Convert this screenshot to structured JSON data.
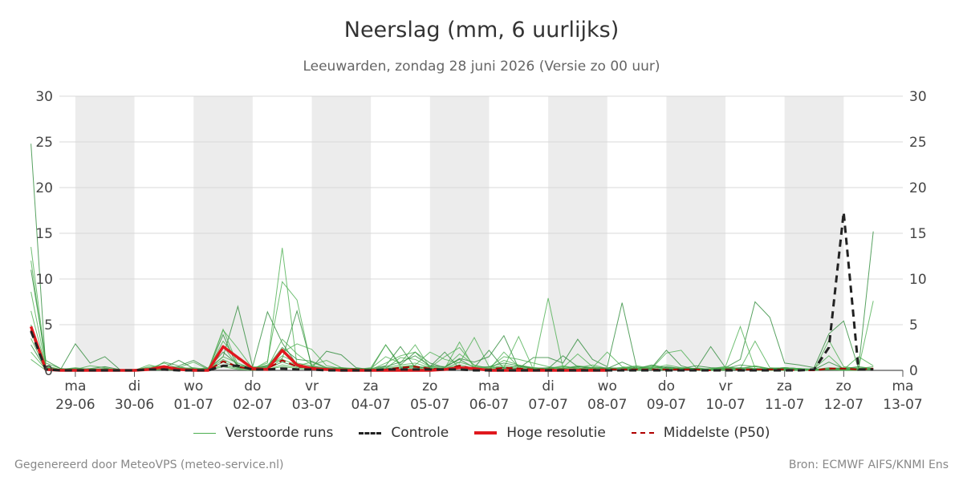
{
  "chart_data": {
    "type": "line",
    "title": "Neerslag (mm, 6 uurlijks)",
    "subtitle": "Leeuwarden, zondag 28 juni 2026 (Versie zo 00 uur)",
    "x_unit_hours": 6,
    "ylim": [
      0,
      30
    ],
    "yticks": [
      0,
      5,
      10,
      15,
      20,
      25,
      30
    ],
    "y_axis_both_sides": true,
    "grid": true,
    "x_tick_labels": [
      {
        "day": "ma",
        "date": "29-06"
      },
      {
        "day": "di",
        "date": "30-06"
      },
      {
        "day": "wo",
        "date": "01-07"
      },
      {
        "day": "do",
        "date": "02-07"
      },
      {
        "day": "vr",
        "date": "03-07"
      },
      {
        "day": "za",
        "date": "04-07"
      },
      {
        "day": "zo",
        "date": "05-07"
      },
      {
        "day": "ma",
        "date": "06-07"
      },
      {
        "day": "di",
        "date": "07-07"
      },
      {
        "day": "wo",
        "date": "08-07"
      },
      {
        "day": "do",
        "date": "09-07"
      },
      {
        "day": "vr",
        "date": "10-07"
      },
      {
        "day": "za",
        "date": "11-07"
      },
      {
        "day": "zo",
        "date": "12-07"
      },
      {
        "day": "ma",
        "date": "13-07"
      }
    ],
    "shaded_days": [
      "29-06",
      "01-07",
      "03-07",
      "05-07",
      "07-07",
      "09-07",
      "11-07"
    ],
    "legend_position": "bottom",
    "series": [
      {
        "name": "Verstoorde runs",
        "role": "ensemble",
        "color": "#2ca02c",
        "style": "thin",
        "members": [
          [
            24.8,
            0.3,
            0.1,
            2.9,
            0.8,
            1.5,
            0.1,
            0,
            0,
            0.9,
            0.5,
            1.1,
            0.2,
            1.5,
            7.0,
            0.4,
            6.4,
            3.0,
            0.6,
            0.3,
            2.1,
            1.7,
            0.3,
            0.1,
            2.8,
            0.6,
            2.0,
            0.8,
            0.3,
            1.3,
            0.9,
            1.5,
            3.8,
            0.2,
            1.4,
            1.4,
            0.8,
            3.4,
            1.2,
            0.4,
            7.4,
            0.2,
            0.3,
            2.2,
            0.5,
            0.1,
            2.6,
            0.3,
            1.2,
            7.5,
            5.8,
            0.8,
            0.6,
            0.3,
            4.0,
            5.4,
            0.2,
            15.2
          ],
          [
            13.5,
            0.8,
            0.2,
            0.1,
            0.5,
            0.3,
            0,
            0,
            0.6,
            0.2,
            0.3,
            0.9,
            0.1,
            4.5,
            0.6,
            0.2,
            0.8,
            13.4,
            0.5,
            0.9,
            0.2,
            0.3,
            0.1,
            0.2,
            1.5,
            0.8,
            2.8,
            0.3,
            0.2,
            3.1,
            0.2,
            0.1,
            2.0,
            0.4,
            0.2,
            7.9,
            0.3,
            1.8,
            0.4,
            0.2,
            0.3,
            0.5,
            0.2,
            1.9,
            2.2,
            0.3,
            0.1,
            0.4,
            4.8,
            0.2,
            0.1,
            0.3,
            0.2,
            0,
            3.3,
            0.4,
            0.2,
            7.6
          ],
          [
            12.0,
            0.5,
            0.1,
            0.3,
            0.1,
            0.2,
            0,
            0.1,
            0.2,
            0.8,
            0.2,
            0.1,
            0.3,
            2.7,
            0.4,
            0.1,
            1.0,
            9.7,
            7.7,
            0.2,
            0.3,
            0.1,
            0.1,
            0.3,
            2.8,
            0.4,
            0.6,
            2.0,
            1.2,
            0.8,
            3.6,
            0.4,
            0.3,
            3.7,
            0.1,
            0.2,
            0.5,
            0.2,
            0.3,
            2.0,
            0.4,
            0.2,
            0.5,
            0.3,
            0.2,
            0.1,
            0.2,
            0.4,
            0.2,
            3.2,
            0.3,
            0.2,
            0.1,
            0.2,
            1.6,
            0.1,
            1.5,
            0.5
          ],
          [
            11.0,
            1.1,
            0.2,
            0.1,
            0.2,
            0.4,
            0.1,
            0,
            0.2,
            0.3,
            1.1,
            0.2,
            0.1,
            3.9,
            0.3,
            0.2,
            0.5,
            1.3,
            6.5,
            0.5,
            0.2,
            0.3,
            0.1,
            0.2,
            0.5,
            2.6,
            0.3,
            0.4,
            2.0,
            0.2,
            0.3,
            2.2,
            0.2,
            0.5,
            0.3,
            0.2,
            1.6,
            0.4,
            0.3,
            0.2,
            0.9,
            0.2,
            0.6,
            0.3,
            0.2,
            0.5,
            0.3,
            0.2,
            0.6,
            0.4,
            0.2,
            0.3,
            0.2,
            0.1,
            0.9,
            0.2,
            0.4,
            0.2
          ],
          [
            8.6,
            0.4,
            0.1,
            0.2,
            0.1,
            0.1,
            0,
            0.1,
            0.3,
            0.2,
            0.2,
            0.3,
            0.1,
            4.4,
            2.4,
            0.2,
            0.6,
            2.0,
            2.9,
            2.3,
            0.5,
            0.2,
            0.2,
            0.1,
            0.8,
            1.6,
            2.0,
            0.3,
            1.5,
            2.5,
            0.5,
            0.3,
            1.5,
            1.2,
            0.8,
            0.4,
            0.2,
            0.5,
            0.3,
            0.2,
            0.3,
            0.2,
            0.4,
            0.2,
            0.3,
            0.2,
            0.1,
            0.3,
            0.2,
            0.5,
            0.2,
            0.3,
            0.2,
            0.1,
            0.2,
            0.3,
            0.2,
            0.4
          ],
          [
            6.5,
            0.3,
            0.1,
            0.1,
            0.2,
            0.1,
            0,
            0,
            0.4,
            0.5,
            0.2,
            0.2,
            0.1,
            3.2,
            1.2,
            0.4,
            0.3,
            3.4,
            1.8,
            0.6,
            1.1,
            0.3,
            0.2,
            0.1,
            0.2,
            1.4,
            1.2,
            0.4,
            0.3,
            1.8,
            0.6,
            0.2,
            1.1,
            0.6,
            0.3,
            0.2,
            0.4,
            0.3,
            0.6,
            0.2,
            0.3,
            0.4,
            0.2,
            0.6,
            0.3,
            0.2,
            0.1,
            0.3,
            0.2,
            0.4,
            0.2,
            0.3,
            0.2,
            0.1,
            0.3,
            0.2,
            0.3,
            0.2
          ],
          [
            5.0,
            0.2,
            0.1,
            0.2,
            0.1,
            0.2,
            0,
            0,
            0.2,
            0.3,
            0.4,
            0.1,
            0.2,
            2.0,
            0.6,
            0.3,
            0.4,
            2.5,
            1.2,
            1.0,
            0.3,
            0.2,
            0.2,
            0.1,
            0.4,
            0.9,
            1.6,
            0.5,
            0.4,
            1.2,
            0.3,
            0.4,
            0.8,
            0.5,
            0.2,
            0.3,
            0.2,
            0.4,
            0.2,
            0.3,
            0.2,
            0.3,
            0.2,
            0.4,
            0.2,
            0.2,
            0.1,
            0.2,
            0.3,
            0.2,
            0.2,
            0.2,
            0.1,
            0.1,
            0.2,
            0.2,
            0.1,
            0.2
          ],
          [
            4.2,
            0.2,
            0.1,
            0.1,
            0.1,
            0.1,
            0,
            0,
            0.1,
            0.2,
            0.3,
            0.2,
            0.1,
            1.5,
            0.8,
            0.2,
            0.3,
            1.6,
            0.8,
            0.5,
            0.2,
            0.2,
            0.1,
            0.1,
            0.3,
            0.6,
            0.8,
            0.3,
            0.2,
            0.9,
            0.4,
            0.2,
            0.6,
            0.3,
            0.2,
            0.2,
            0.3,
            0.2,
            0.2,
            0.2,
            0.2,
            0.2,
            0.3,
            0.2,
            0.2,
            0.1,
            0.2,
            0.2,
            0.2,
            0.1,
            0.2,
            0.1,
            0.1,
            0.1,
            0.2,
            0.1,
            0.2,
            0.1
          ],
          [
            3.5,
            0.1,
            0.1,
            0.1,
            0.1,
            0.1,
            0,
            0,
            0.2,
            0.1,
            0.2,
            0.1,
            0.1,
            1.2,
            0.4,
            0.1,
            0.2,
            1.2,
            0.6,
            0.4,
            0.2,
            0.1,
            0.1,
            0.1,
            0.2,
            0.4,
            0.5,
            0.2,
            0.2,
            0.6,
            0.2,
            0.2,
            0.4,
            0.2,
            0.1,
            0.2,
            0.2,
            0.1,
            0.2,
            0.1,
            0.1,
            0.2,
            0.1,
            0.2,
            0.1,
            0.1,
            0.1,
            0.1,
            0.1,
            0.2,
            0.1,
            0.1,
            0.1,
            0.1,
            0.1,
            0.1,
            0.1,
            0.1
          ],
          [
            2.8,
            0.1,
            0,
            0.1,
            0,
            0.1,
            0,
            0,
            0.1,
            0.1,
            0.1,
            0.1,
            0.1,
            0.9,
            0.3,
            0.1,
            0.2,
            0.9,
            0.4,
            0.3,
            0.1,
            0.1,
            0.1,
            0,
            0.1,
            0.3,
            0.4,
            0.2,
            0.1,
            0.4,
            0.2,
            0.1,
            0.3,
            0.2,
            0.1,
            0.1,
            0.1,
            0.1,
            0.1,
            0.1,
            0.1,
            0.1,
            0.1,
            0.1,
            0.1,
            0.1,
            0,
            0.1,
            0.1,
            0.1,
            0.1,
            0.1,
            0,
            0,
            0.1,
            0.1,
            0.1,
            0.1
          ],
          [
            2.0,
            0.1,
            0,
            0,
            0,
            0,
            0,
            0,
            0.1,
            0.1,
            0.1,
            0,
            0,
            0.6,
            0.2,
            0.1,
            0.1,
            0.6,
            0.3,
            0.2,
            0.1,
            0.1,
            0,
            0,
            0.1,
            0.2,
            0.3,
            0.1,
            0.1,
            0.3,
            0.1,
            0.1,
            0.2,
            0.1,
            0.1,
            0.1,
            0.1,
            0.1,
            0.1,
            0,
            0.1,
            0.1,
            0.1,
            0.1,
            0.1,
            0,
            0,
            0.1,
            0.1,
            0.1,
            0,
            0,
            0,
            0,
            0.1,
            0,
            0.1,
            0.1
          ],
          [
            1.2,
            0,
            0,
            0,
            0,
            0,
            0,
            0,
            0,
            0.1,
            0,
            0,
            0,
            0.4,
            0.1,
            0,
            0.1,
            0.4,
            0.2,
            0.1,
            0.1,
            0,
            0,
            0,
            0.1,
            0.1,
            0.2,
            0.1,
            0,
            0.2,
            0.1,
            0,
            0.1,
            0.1,
            0,
            0.1,
            0,
            0.1,
            0,
            0,
            0.1,
            0,
            0.1,
            0,
            0.1,
            0,
            0,
            0,
            0.1,
            0,
            0,
            0,
            0,
            0,
            0.1,
            0,
            0,
            0.1
          ]
        ]
      },
      {
        "name": "Controle",
        "role": "control",
        "color": "#222222",
        "style": "dashed",
        "values": [
          4.3,
          0.1,
          0,
          0,
          0,
          0,
          0,
          0,
          0.1,
          0.1,
          0,
          0,
          0,
          0.5,
          0.5,
          0.1,
          0.1,
          0.2,
          0.1,
          0.1,
          0,
          0,
          0,
          0,
          0.1,
          0.1,
          0.1,
          0.1,
          0.1,
          0.1,
          0,
          0,
          0,
          0,
          0,
          0,
          0,
          0,
          0,
          0,
          0,
          0,
          0,
          0,
          0,
          0,
          0,
          0,
          0,
          0,
          0,
          0,
          0,
          0.1,
          2.5,
          17.3,
          0.1,
          0.1
        ]
      },
      {
        "name": "Hoge resolutie",
        "role": "hires",
        "color": "#e0181e",
        "style": "thick",
        "values": [
          4.8,
          0.1,
          0,
          0,
          0,
          0,
          0,
          0,
          0.1,
          0.4,
          0.1,
          0,
          0,
          2.6,
          1.4,
          0.2,
          0.1,
          2.2,
          0.6,
          0.2,
          0.1,
          0,
          0,
          0,
          0,
          0,
          0,
          0,
          0.1,
          0.3,
          0.2,
          0,
          0,
          0,
          0,
          0,
          0,
          0,
          0,
          0
        ]
      },
      {
        "name": "Middelste (P50)",
        "role": "median",
        "color": "#b00000",
        "style": "dashed-thin",
        "values": [
          4.4,
          0.1,
          0,
          0,
          0,
          0,
          0,
          0,
          0.1,
          0.2,
          0.1,
          0.1,
          0,
          1.0,
          0.4,
          0.1,
          0.2,
          1.1,
          0.4,
          0.3,
          0.1,
          0.1,
          0.1,
          0,
          0.1,
          0.3,
          0.4,
          0.2,
          0.1,
          0.5,
          0.2,
          0.1,
          0.3,
          0.2,
          0.1,
          0.1,
          0.1,
          0.1,
          0.1,
          0.1,
          0.1,
          0.1,
          0.1,
          0.1,
          0.1,
          0.1,
          0,
          0.1,
          0.1,
          0.1,
          0.1,
          0.1,
          0,
          0,
          0.2,
          0.2,
          0.1,
          0.2
        ]
      }
    ]
  },
  "legend": [
    {
      "label": "Verstoorde runs",
      "color": "#4caf50",
      "style": "thin"
    },
    {
      "label": "Controle",
      "color": "#222222",
      "style": "dashed"
    },
    {
      "label": "Hoge resolutie",
      "color": "#e0181e",
      "style": "thick"
    },
    {
      "label": "Middelste (P50)",
      "color": "#b00000",
      "style": "dashed"
    }
  ],
  "footer": {
    "left": "Gegenereerd door MeteoVPS (meteo-service.nl)",
    "right": "Bron: ECMWF AIFS/KNMI Ens"
  }
}
